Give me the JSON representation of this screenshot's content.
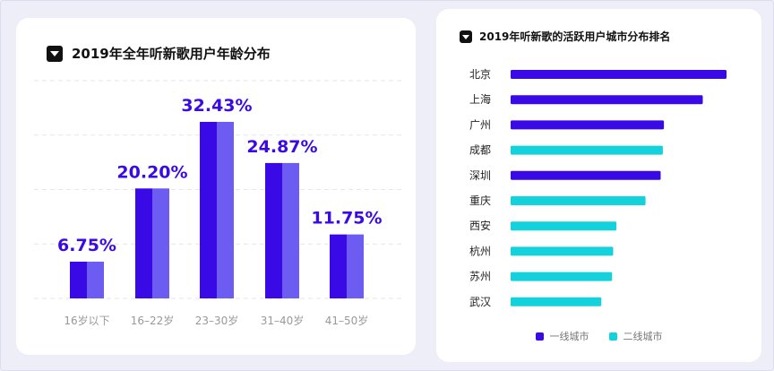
{
  "charts": {
    "age": {
      "title": "2019年全年听新歌用户年龄分布"
    },
    "city": {
      "title": "2019年听新歌的活跃用户城市分布排名"
    }
  },
  "chart_data": [
    {
      "type": "bar",
      "title": "2019年全年听新歌用户年龄分布",
      "categories": [
        "16岁以下",
        "16–22岁",
        "23–30岁",
        "31–40岁",
        "41–50岁"
      ],
      "values": [
        6.75,
        20.2,
        32.43,
        24.87,
        11.75
      ],
      "value_labels": [
        "6.75%",
        "20.20%",
        "32.43%",
        "24.87%",
        "11.75%"
      ],
      "unit": "%",
      "ylim": [
        0,
        40
      ],
      "grid": true,
      "colors": {
        "bar_dark": "#3a0ae6",
        "bar_light": "#6c5cf2",
        "label": "#3a0ae6",
        "grid": "#e6e6ec",
        "tick": "#999999"
      }
    },
    {
      "type": "bar",
      "orientation": "horizontal",
      "title": "2019年听新歌的活跃用户城市分布排名",
      "categories": [
        "北京",
        "上海",
        "广州",
        "成都",
        "深圳",
        "重庆",
        "西安",
        "杭州",
        "苏州",
        "武汉"
      ],
      "values": [
        100,
        89,
        71,
        70.5,
        69.5,
        62.5,
        49,
        47.5,
        47,
        42
      ],
      "tiers": [
        "tier1",
        "tier1",
        "tier1",
        "tier2",
        "tier1",
        "tier2",
        "tier2",
        "tier2",
        "tier2",
        "tier2"
      ],
      "xlim": [
        0,
        100
      ],
      "legend_position": "bottom",
      "series": [
        {
          "key": "tier1",
          "name": "一线城市",
          "color": "#3a0ae6"
        },
        {
          "key": "tier2",
          "name": "二线城市",
          "color": "#14d2dc"
        }
      ]
    }
  ]
}
